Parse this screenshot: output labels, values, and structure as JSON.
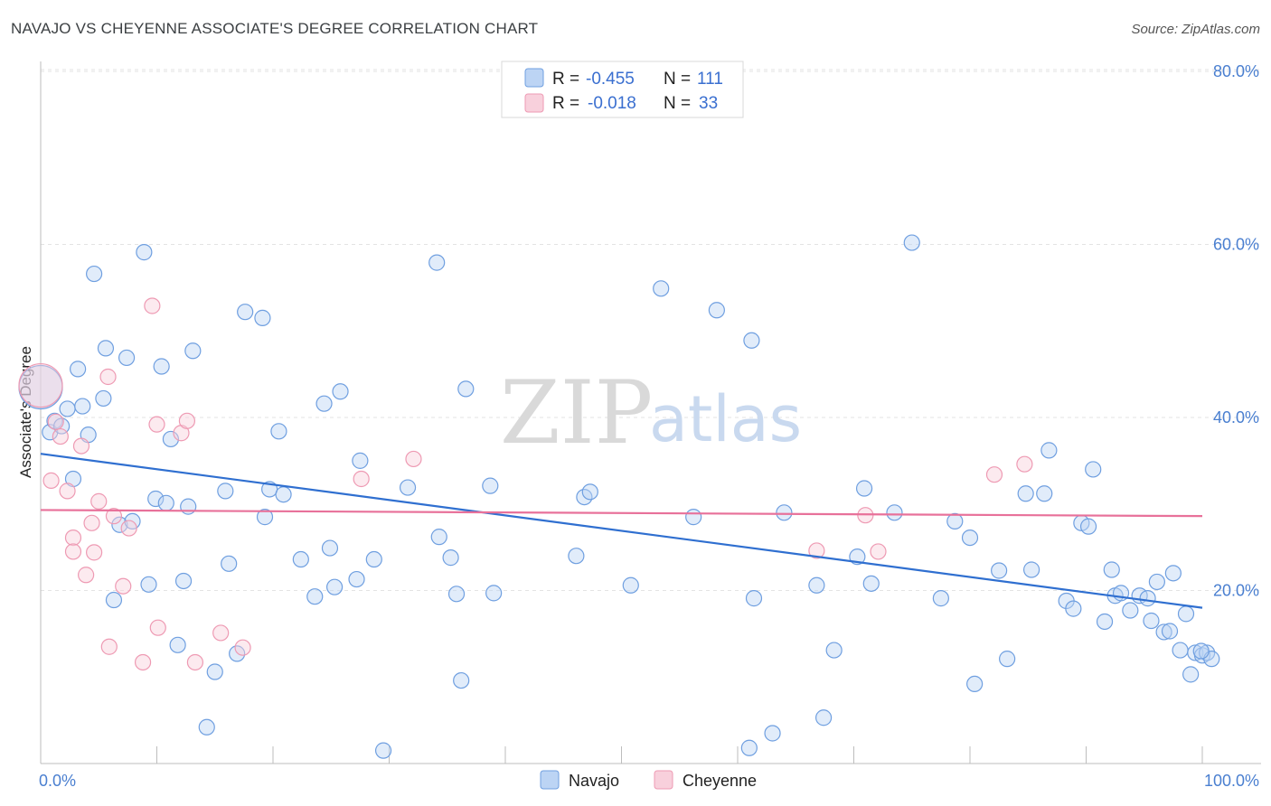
{
  "title": "NAVAJO VS CHEYENNE ASSOCIATE'S DEGREE CORRELATION CHART",
  "source": "Source: ZipAtlas.com",
  "watermark": {
    "part1": "ZIP",
    "part2": "atlas"
  },
  "colors": {
    "navajo": "#6f9fe0",
    "navajo_fill": "#bcd4f4",
    "navajo_line": "#2f6fd0",
    "cheyenne": "#ee9ab3",
    "cheyenne_fill": "#f8d0dc",
    "cheyenne_line": "#e8719a",
    "axis_text": "#4a7fd0"
  },
  "legend": {
    "rows": [
      {
        "r_label": "R =",
        "r_value": "-0.455",
        "n_label": "N =",
        "n_value": "111"
      },
      {
        "r_label": "R =",
        "r_value": "-0.018",
        "n_label": "N =",
        "n_value": "33"
      }
    ]
  },
  "bottom_legend": [
    "Navajo",
    "Cheyenne"
  ],
  "chart_data": {
    "type": "scatter",
    "title": "NAVAJO VS CHEYENNE ASSOCIATE'S DEGREE CORRELATION CHART",
    "xlabel": "",
    "ylabel": "Associate's Degree",
    "xlim": [
      0,
      100
    ],
    "ylim": [
      0,
      82
    ],
    "x_tick_labels": [
      "0.0%",
      "100.0%"
    ],
    "y_ticks": [
      20,
      40,
      60,
      80
    ],
    "y_tick_labels": [
      "20.0%",
      "40.0%",
      "60.0%",
      "80.0%"
    ],
    "series": [
      {
        "name": "Navajo",
        "trend": {
          "x": [
            0,
            100
          ],
          "y": [
            35.8,
            18.0
          ]
        },
        "points": [
          [
            0,
            43.5
          ],
          [
            0.8,
            38.3
          ],
          [
            1.2,
            39.6
          ],
          [
            1.8,
            39.0
          ],
          [
            2.3,
            41.0
          ],
          [
            2.8,
            32.9
          ],
          [
            3.2,
            45.6
          ],
          [
            3.6,
            41.3
          ],
          [
            4.1,
            38.0
          ],
          [
            4.6,
            56.6
          ],
          [
            5.4,
            42.2
          ],
          [
            5.6,
            48.0
          ],
          [
            6.3,
            18.9
          ],
          [
            6.8,
            27.6
          ],
          [
            7.4,
            46.9
          ],
          [
            7.9,
            28.0
          ],
          [
            8.9,
            59.1
          ],
          [
            9.3,
            20.7
          ],
          [
            9.9,
            30.6
          ],
          [
            10.4,
            45.9
          ],
          [
            10.8,
            30.1
          ],
          [
            11.2,
            37.5
          ],
          [
            11.8,
            13.7
          ],
          [
            12.3,
            21.1
          ],
          [
            12.7,
            29.7
          ],
          [
            13.1,
            47.7
          ],
          [
            14.3,
            4.2
          ],
          [
            15.0,
            10.6
          ],
          [
            15.9,
            31.5
          ],
          [
            16.2,
            23.1
          ],
          [
            16.9,
            12.7
          ],
          [
            17.6,
            52.2
          ],
          [
            19.1,
            51.5
          ],
          [
            19.3,
            28.5
          ],
          [
            19.7,
            31.7
          ],
          [
            20.5,
            38.4
          ],
          [
            20.9,
            31.1
          ],
          [
            22.4,
            23.6
          ],
          [
            23.6,
            19.3
          ],
          [
            24.4,
            41.6
          ],
          [
            24.9,
            24.9
          ],
          [
            25.3,
            20.4
          ],
          [
            25.8,
            43.0
          ],
          [
            27.2,
            21.3
          ],
          [
            27.5,
            35.0
          ],
          [
            28.7,
            23.6
          ],
          [
            29.5,
            1.5
          ],
          [
            31.6,
            31.9
          ],
          [
            34.1,
            57.9
          ],
          [
            34.3,
            26.2
          ],
          [
            35.3,
            23.8
          ],
          [
            35.8,
            19.6
          ],
          [
            36.2,
            9.6
          ],
          [
            36.6,
            43.3
          ],
          [
            39.0,
            19.7
          ],
          [
            38.7,
            32.1
          ],
          [
            46.1,
            24.0
          ],
          [
            46.8,
            30.8
          ],
          [
            47.3,
            31.4
          ],
          [
            50.8,
            20.6
          ],
          [
            53.4,
            54.9
          ],
          [
            56.2,
            28.5
          ],
          [
            58.2,
            52.4
          ],
          [
            61.0,
            1.8
          ],
          [
            61.2,
            48.9
          ],
          [
            61.4,
            19.1
          ],
          [
            63.0,
            3.5
          ],
          [
            64.0,
            29.0
          ],
          [
            66.8,
            20.6
          ],
          [
            67.4,
            5.3
          ],
          [
            68.3,
            13.1
          ],
          [
            70.3,
            23.9
          ],
          [
            70.9,
            31.8
          ],
          [
            71.5,
            20.8
          ],
          [
            73.5,
            29.0
          ],
          [
            75.0,
            60.2
          ],
          [
            77.5,
            19.1
          ],
          [
            78.7,
            28.0
          ],
          [
            80.0,
            26.1
          ],
          [
            80.4,
            9.2
          ],
          [
            82.5,
            22.3
          ],
          [
            83.2,
            12.1
          ],
          [
            84.8,
            31.2
          ],
          [
            85.3,
            22.4
          ],
          [
            86.4,
            31.2
          ],
          [
            86.8,
            36.2
          ],
          [
            88.3,
            18.8
          ],
          [
            88.9,
            17.9
          ],
          [
            89.6,
            27.8
          ],
          [
            90.2,
            27.4
          ],
          [
            90.6,
            34.0
          ],
          [
            91.6,
            16.4
          ],
          [
            92.2,
            22.4
          ],
          [
            92.5,
            19.4
          ],
          [
            93.0,
            19.7
          ],
          [
            93.8,
            17.7
          ],
          [
            94.6,
            19.4
          ],
          [
            95.3,
            19.1
          ],
          [
            95.6,
            16.5
          ],
          [
            96.1,
            21.0
          ],
          [
            96.7,
            15.2
          ],
          [
            97.2,
            15.3
          ],
          [
            97.5,
            22.0
          ],
          [
            98.1,
            13.1
          ],
          [
            98.6,
            17.3
          ],
          [
            99.0,
            10.3
          ],
          [
            99.4,
            12.8
          ],
          [
            100.0,
            12.5
          ],
          [
            100.4,
            12.8
          ],
          [
            100.8,
            12.1
          ],
          [
            99.9,
            13.0
          ]
        ]
      },
      {
        "name": "Cheyenne",
        "trend": {
          "x": [
            0,
            100
          ],
          "y": [
            29.3,
            28.6
          ]
        },
        "points": [
          [
            0,
            43.7
          ],
          [
            0.9,
            32.7
          ],
          [
            1.3,
            39.5
          ],
          [
            1.7,
            37.8
          ],
          [
            2.3,
            31.5
          ],
          [
            2.8,
            26.1
          ],
          [
            2.8,
            24.5
          ],
          [
            3.5,
            36.7
          ],
          [
            3.9,
            21.8
          ],
          [
            4.4,
            27.8
          ],
          [
            4.6,
            24.4
          ],
          [
            5.0,
            30.3
          ],
          [
            5.8,
            44.7
          ],
          [
            5.9,
            13.5
          ],
          [
            6.3,
            28.6
          ],
          [
            7.1,
            20.5
          ],
          [
            7.6,
            27.2
          ],
          [
            8.8,
            11.7
          ],
          [
            9.6,
            52.9
          ],
          [
            10.0,
            39.2
          ],
          [
            10.1,
            15.7
          ],
          [
            12.1,
            38.2
          ],
          [
            12.6,
            39.6
          ],
          [
            13.3,
            11.7
          ],
          [
            15.5,
            15.1
          ],
          [
            17.4,
            13.4
          ],
          [
            27.6,
            32.9
          ],
          [
            32.1,
            35.2
          ],
          [
            66.8,
            24.6
          ],
          [
            71.0,
            28.7
          ],
          [
            72.1,
            24.5
          ],
          [
            82.1,
            33.4
          ],
          [
            84.7,
            34.6
          ]
        ]
      }
    ]
  }
}
